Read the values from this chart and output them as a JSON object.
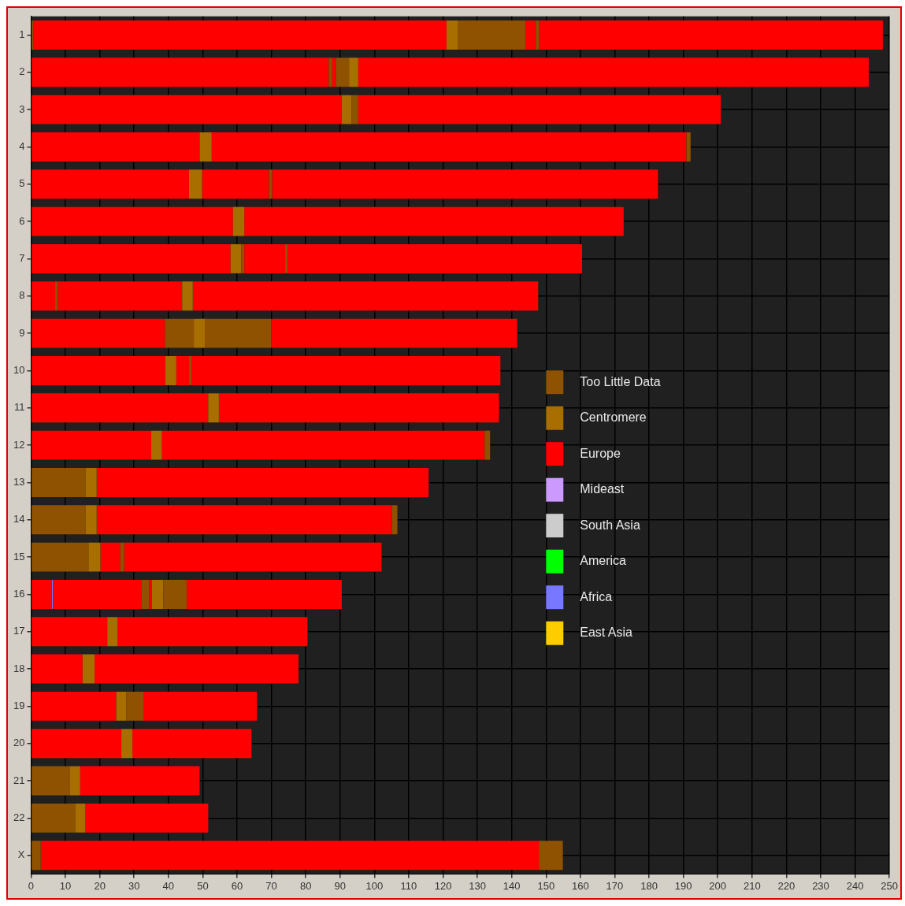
{
  "chart_data": {
    "type": "bar",
    "orientation": "horizontal",
    "categories": [
      "1",
      "2",
      "3",
      "4",
      "5",
      "6",
      "7",
      "8",
      "9",
      "10",
      "11",
      "12",
      "13",
      "14",
      "15",
      "16",
      "17",
      "18",
      "19",
      "20",
      "21",
      "22",
      "X"
    ],
    "xlim": [
      0,
      250
    ],
    "xticks": [
      0,
      10,
      20,
      30,
      40,
      50,
      60,
      70,
      80,
      90,
      100,
      110,
      120,
      130,
      140,
      150,
      160,
      170,
      180,
      190,
      200,
      210,
      220,
      230,
      240,
      250
    ],
    "grid": true,
    "legend": "right",
    "series": [
      {
        "name": "Too Little Data",
        "color": "#8f5200",
        "base": [
          0,
          86.7,
          93.3,
          190.9,
          69.3,
          null,
          61.2,
          7,
          39,
          46,
          null,
          132.1,
          0,
          0,
          0,
          32.1,
          null,
          null,
          27.7,
          null,
          0,
          0,
          0
        ],
        "values": [
          0.7,
          1,
          2,
          1.2,
          0.9,
          null,
          0.9,
          0.8,
          8.4,
          0.7,
          null,
          1.6,
          15.8,
          15.8,
          16.7,
          2.3,
          null,
          null,
          5,
          null,
          11.2,
          12.8,
          2.8
        ]
      },
      {
        "color": "#8f5200",
        "base": [
          124.4,
          88.8,
          null,
          null,
          null,
          null,
          74,
          null,
          50.6,
          null,
          null,
          null,
          null,
          105.1,
          26,
          38.5,
          null,
          null,
          null,
          null,
          null,
          null,
          147.9
        ],
        "values": [
          19.6,
          3.8,
          null,
          null,
          null,
          null,
          0.7,
          null,
          19.4,
          null,
          null,
          null,
          null,
          1.6,
          1.1,
          6.8,
          null,
          null,
          null,
          null,
          null,
          null,
          7
        ]
      },
      {
        "color": "#8f5200",
        "base": [
          147,
          null,
          null,
          null,
          null,
          null,
          null,
          null,
          null,
          null,
          null,
          null,
          null,
          null,
          null,
          null,
          null,
          null,
          null,
          null,
          null,
          null,
          null
        ],
        "values": [
          1,
          null,
          null,
          null,
          null,
          null,
          null,
          null,
          null,
          null,
          null,
          null,
          null,
          null,
          null,
          null,
          null,
          null,
          null,
          null,
          null,
          null,
          null
        ]
      },
      {
        "name": "Centromere",
        "color": "#a86e00",
        "base": [
          121,
          92.6,
          90.5,
          49.1,
          46,
          58.8,
          58.1,
          44,
          47.4,
          39.1,
          51.6,
          35,
          15.8,
          15.8,
          16.7,
          35.2,
          22.2,
          15,
          24.8,
          26.3,
          11.2,
          12.8,
          null
        ],
        "values": [
          3.4,
          2.7,
          2.8,
          3.5,
          3.8,
          3.3,
          3.1,
          3.1,
          3.2,
          3.2,
          3.1,
          3.1,
          3.3,
          3.3,
          3.5,
          3.3,
          3,
          3.5,
          2.9,
          3.2,
          3.1,
          3,
          null
        ]
      },
      {
        "name": "Europe",
        "color": "#ff0000",
        "base": [
          0.7,
          0,
          0,
          0,
          0,
          0,
          0,
          0,
          0,
          0,
          0,
          0,
          19.1,
          19.1,
          20.2,
          0,
          0,
          0,
          0,
          0,
          14.3,
          15.8,
          2.8
        ],
        "values": [
          120.3,
          86.7,
          90.5,
          49.1,
          46,
          58.8,
          58.1,
          7,
          39,
          39.1,
          51.6,
          35,
          96.7,
          86,
          5.8,
          6,
          22.2,
          15,
          24.8,
          26.3,
          34.8,
          35.8,
          145.1
        ]
      },
      {
        "color": "#ff0000",
        "base": [
          144,
          87.7,
          95.3,
          52.6,
          49.8,
          62.1,
          62.1,
          7.8,
          70,
          42.3,
          54.7,
          38.1,
          null,
          null,
          27.1,
          6.4,
          25.2,
          18.5,
          32.7,
          29.5,
          null,
          null,
          null
        ],
        "values": [
          3,
          1.1,
          105.6,
          138.3,
          19.5,
          110.5,
          11.9,
          36.2,
          71.6,
          3.7,
          81.6,
          94,
          null,
          null,
          75,
          25.7,
          55.3,
          59.4,
          33.1,
          34.7,
          null,
          null,
          null
        ]
      },
      {
        "color": "#ff0000",
        "base": [
          148,
          95.3,
          null,
          null,
          70.2,
          null,
          74.7,
          47.1,
          null,
          46.7,
          null,
          null,
          null,
          null,
          null,
          34.4,
          null,
          null,
          null,
          null,
          null,
          null,
          null
        ],
        "values": [
          100.1,
          148.7,
          null,
          null,
          112.4,
          null,
          85.8,
          100.6,
          null,
          90,
          null,
          null,
          null,
          null,
          null,
          0.8,
          null,
          null,
          null,
          null,
          null,
          null,
          null
        ]
      },
      {
        "color": "#ff0000",
        "base": [
          null,
          null,
          null,
          null,
          null,
          null,
          null,
          null,
          null,
          null,
          null,
          null,
          null,
          null,
          null,
          45.3,
          null,
          null,
          null,
          null,
          null,
          null,
          null
        ],
        "values": [
          null,
          null,
          null,
          null,
          null,
          null,
          null,
          null,
          null,
          null,
          null,
          null,
          null,
          null,
          null,
          45.2,
          null,
          null,
          null,
          null,
          null,
          null,
          null
        ]
      },
      {
        "name": "Mideast",
        "color": "#cc99ff",
        "values": [
          null,
          null,
          null,
          null,
          null,
          null,
          null,
          null,
          null,
          null,
          null,
          null,
          null,
          null,
          null,
          null,
          null,
          null,
          null,
          null,
          null,
          null,
          null
        ]
      },
      {
        "name": "South Asia",
        "color": "#cccccc",
        "values": [
          null,
          null,
          null,
          null,
          null,
          null,
          null,
          null,
          null,
          null,
          null,
          null,
          null,
          null,
          null,
          null,
          null,
          null,
          null,
          null,
          null,
          null,
          null
        ]
      },
      {
        "name": "America",
        "color": "#00ff00",
        "values": [
          null,
          null,
          null,
          null,
          null,
          null,
          null,
          null,
          null,
          null,
          null,
          null,
          null,
          null,
          null,
          null,
          null,
          null,
          null,
          null,
          null,
          null,
          null
        ]
      },
      {
        "name": "Africa",
        "color": "#7777ff",
        "base": [
          null,
          null,
          null,
          null,
          null,
          null,
          null,
          null,
          null,
          null,
          null,
          null,
          null,
          null,
          null,
          6,
          null,
          null,
          null,
          null,
          null,
          null,
          null
        ],
        "values": [
          null,
          null,
          null,
          null,
          null,
          null,
          null,
          null,
          null,
          null,
          null,
          null,
          null,
          null,
          null,
          0.4,
          null,
          null,
          null,
          null,
          null,
          null,
          null
        ]
      },
      {
        "name": "East Asia",
        "color": "#ffcc00",
        "values": [
          null,
          null,
          null,
          null,
          null,
          null,
          null,
          null,
          null,
          null,
          null,
          null,
          null,
          null,
          null,
          null,
          null,
          null,
          null,
          null,
          null,
          null,
          null
        ]
      }
    ]
  }
}
